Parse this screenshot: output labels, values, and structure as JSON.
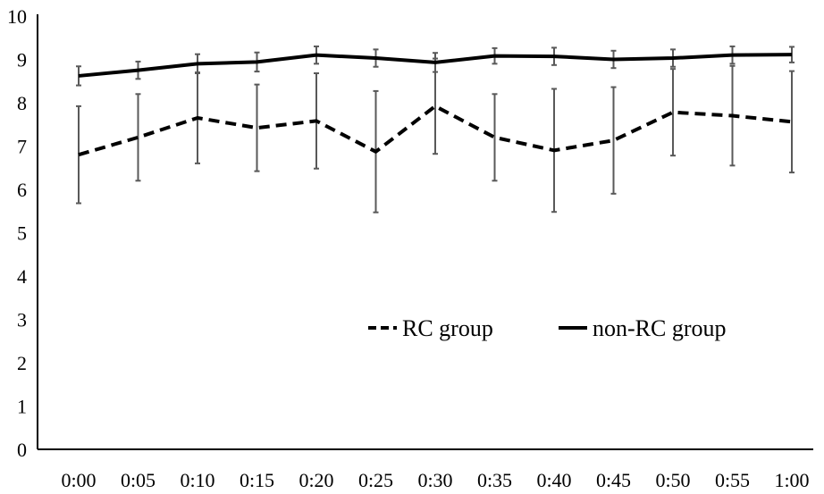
{
  "chart_data": {
    "type": "line",
    "title": "",
    "xlabel": "",
    "ylabel": "",
    "categories": [
      "0:00",
      "0:05",
      "0:10",
      "0:15",
      "0:20",
      "0:25",
      "0:30",
      "0:35",
      "0:40",
      "0:45",
      "0:50",
      "0:55",
      "1:00"
    ],
    "ylim": [
      0,
      10
    ],
    "yticks": [
      "0",
      "1",
      "2",
      "3",
      "4",
      "5",
      "6",
      "7",
      "8",
      "9",
      "10"
    ],
    "grid": false,
    "legend_position": "lower-right",
    "series": [
      {
        "name": "RC group",
        "line_style": "dashed",
        "color": "#000000",
        "values": [
          6.8,
          7.2,
          7.65,
          7.42,
          7.58,
          6.87,
          7.92,
          7.2,
          6.9,
          7.13,
          7.78,
          7.7,
          7.56
        ],
        "errors": [
          1.12,
          1.0,
          1.05,
          1.0,
          1.1,
          1.4,
          1.1,
          1.0,
          1.42,
          1.23,
          1.0,
          1.15,
          1.17
        ]
      },
      {
        "name": "non-RC group",
        "line_style": "solid",
        "color": "#000000",
        "values": [
          8.62,
          8.75,
          8.9,
          8.94,
          9.1,
          9.03,
          8.93,
          9.08,
          9.07,
          9.0,
          9.03,
          9.1,
          9.11
        ],
        "errors": [
          0.22,
          0.2,
          0.22,
          0.22,
          0.2,
          0.2,
          0.22,
          0.18,
          0.2,
          0.2,
          0.2,
          0.2,
          0.18
        ]
      }
    ],
    "errorbar_color": "#595959"
  }
}
